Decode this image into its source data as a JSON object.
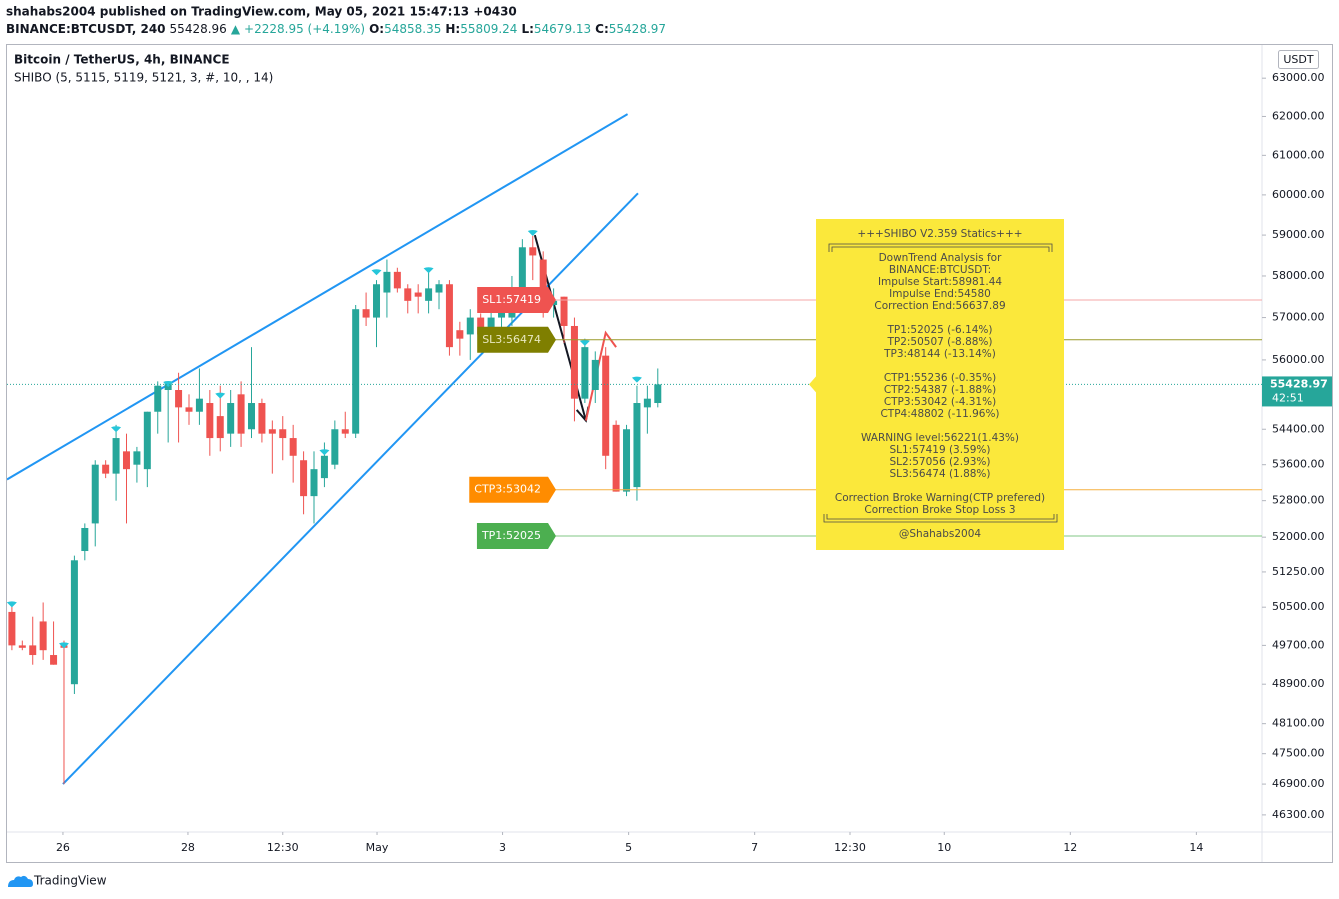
{
  "header": {
    "line1": "shahabs2004 published on TradingView.com, May 05, 2021 15:47:13 +0430",
    "line2": [
      {
        "text": "BINANCE:BTCUSDT, 240",
        "bold": true
      },
      {
        "text": "55428.96"
      },
      {
        "text": "▲",
        "color": "#26a69a"
      },
      {
        "text": "+2228.95 (+4.19%)",
        "color": "#26a69a"
      },
      {
        "text": "O:",
        "bold": true
      },
      {
        "text": "54858.35",
        "color": "#26a69a"
      },
      {
        "text": "H:",
        "bold": true
      },
      {
        "text": "55809.24",
        "color": "#26a69a"
      },
      {
        "text": "L:",
        "bold": true
      },
      {
        "text": "54679.13",
        "color": "#26a69a"
      },
      {
        "text": "C:",
        "bold": true
      },
      {
        "text": "55428.97",
        "color": "#26a69a"
      }
    ]
  },
  "footer": {
    "brand": "TradingView"
  },
  "chart_data": {
    "type": "candlestick",
    "title": "Bitcoin / TetherUS, 4h, BINANCE",
    "subtitle": "SHIBO (5, 5115, 5119, 5121, 3, #, 10, , 14)",
    "currency": "USDT",
    "up_color": "#26a69a",
    "down_color": "#ef5350",
    "log_scale": true,
    "grid": false,
    "open": [
      50400,
      49700,
      49700,
      50200,
      49500,
      49700,
      48900,
      51700,
      52300,
      53600,
      53400,
      53900,
      53600,
      53500,
      54800,
      55300,
      55300,
      54900,
      54800,
      55000,
      54700,
      54300,
      55200,
      54400,
      55000,
      54400,
      54400,
      54200,
      53700,
      52900,
      53300,
      53600,
      54400,
      54300,
      57200,
      57000,
      57600,
      58100,
      57700,
      57600,
      57400,
      57600,
      57800,
      56700,
      56600,
      57000,
      56500,
      57000,
      57000,
      57700,
      58700,
      58400,
      57300,
      57500,
      56800,
      55100,
      55300,
      56100,
      54500,
      53000,
      53100,
      54900,
      55000
    ],
    "high": [
      50600,
      49800,
      50300,
      50600,
      50200,
      49800,
      51600,
      52300,
      53700,
      53700,
      54500,
      54300,
      54000,
      54800,
      55500,
      55500,
      55700,
      55200,
      55800,
      55300,
      55400,
      55300,
      55500,
      56300,
      55100,
      54600,
      54700,
      54500,
      53900,
      53900,
      54100,
      54600,
      54800,
      57300,
      57600,
      57900,
      58400,
      58200,
      57800,
      57800,
      58100,
      57900,
      57900,
      56900,
      57200,
      57100,
      57200,
      57500,
      58000,
      58900,
      58981,
      58600,
      57700,
      57500,
      57000,
      56500,
      56200,
      56300,
      54600,
      54500,
      55400,
      55400,
      55800
    ],
    "low": [
      49600,
      49600,
      49300,
      49400,
      49300,
      46900,
      48700,
      51500,
      51800,
      53300,
      52800,
      52300,
      53200,
      53100,
      54300,
      54100,
      54100,
      54500,
      54500,
      53800,
      53900,
      54000,
      54000,
      54200,
      54100,
      53400,
      53700,
      53200,
      52500,
      52300,
      53100,
      53500,
      54200,
      54200,
      56800,
      56300,
      57000,
      57600,
      57100,
      57100,
      57100,
      57200,
      56100,
      56100,
      56000,
      56400,
      56400,
      56600,
      56800,
      57500,
      57900,
      57000,
      57000,
      56400,
      54580,
      55000,
      55000,
      53500,
      53000,
      52900,
      52800,
      54300,
      54900
    ],
    "close": [
      49700,
      49650,
      49500,
      49600,
      49300,
      49650,
      51500,
      52200,
      53600,
      53400,
      54200,
      53500,
      53900,
      54800,
      55400,
      55500,
      54900,
      54800,
      55100,
      54200,
      54200,
      55000,
      54300,
      55000,
      54300,
      54300,
      54200,
      53800,
      52900,
      53500,
      53800,
      54400,
      54300,
      57200,
      57000,
      57800,
      58100,
      57700,
      57400,
      57500,
      57700,
      57800,
      56300,
      56500,
      57000,
      56600,
      57000,
      57300,
      57700,
      58700,
      58500,
      57200,
      57400,
      56800,
      55100,
      56300,
      56000,
      53800,
      53000,
      54400,
      55000,
      55100,
      55428.97
    ],
    "xlim": [
      -0.47,
      120
    ],
    "xticks": [
      {
        "value": 4.9,
        "label": "26"
      },
      {
        "value": 16.9,
        "label": "28"
      },
      {
        "value": 26.0,
        "label": "12:30"
      },
      {
        "value": 35.05,
        "label": "May"
      },
      {
        "value": 47.1,
        "label": "3"
      },
      {
        "value": 59.2,
        "label": "5"
      },
      {
        "value": 71.3,
        "label": "7"
      },
      {
        "value": 80.45,
        "label": "12:30"
      },
      {
        "value": 89.5,
        "label": "10"
      },
      {
        "value": 101.6,
        "label": "12"
      },
      {
        "value": 113.7,
        "label": "14"
      }
    ],
    "ylim": [
      45970,
      63880
    ],
    "yticks": [
      {
        "value": 46300,
        "label": "46300.00"
      },
      {
        "value": 46900,
        "label": "46900.00"
      },
      {
        "value": 47500,
        "label": "47500.00"
      },
      {
        "value": 48100,
        "label": "48100.00"
      },
      {
        "value": 48900,
        "label": "48900.00"
      },
      {
        "value": 49700,
        "label": "49700.00"
      },
      {
        "value": 50500,
        "label": "50500.00"
      },
      {
        "value": 51250,
        "label": "51250.00"
      },
      {
        "value": 52000,
        "label": "52000.00"
      },
      {
        "value": 52800,
        "label": "52800.00"
      },
      {
        "value": 53600,
        "label": "53600.00"
      },
      {
        "value": 54400,
        "label": "54400.00"
      },
      {
        "value": 56000,
        "label": "56000.00"
      },
      {
        "value": 57000,
        "label": "57000.00"
      },
      {
        "value": 58000,
        "label": "58000.00"
      },
      {
        "value": 59000,
        "label": "59000.00"
      },
      {
        "value": 60000,
        "label": "60000.00"
      },
      {
        "value": 61000,
        "label": "61000.00"
      },
      {
        "value": 62000,
        "label": "62000.00"
      },
      {
        "value": 63000,
        "label": "63000.00"
      }
    ],
    "last_price": {
      "value": 55428.97,
      "label": "55428.97",
      "countdown": "42:51",
      "color": "#26a69a"
    },
    "levels": [
      {
        "value": 57419,
        "label": "SL1:57419",
        "color": "#ef5350",
        "line_color": "#f4a7a7"
      },
      {
        "value": 56474,
        "label": "SL3:56474",
        "color": "#7f7f00",
        "line_color": "#9a9a2a"
      },
      {
        "value": 53042,
        "label": "CTP3:53042",
        "color": "#ff8c00",
        "line_color": "#f5b041"
      },
      {
        "value": 52025,
        "label": "TP1:52025",
        "color": "#4caf50",
        "line_color": "#81c784"
      }
    ],
    "drawings": [
      {
        "color": "#2196f3",
        "x": [
          -0.47,
          59.1
        ],
        "y": [
          53270,
          62060
        ]
      },
      {
        "color": "#2196f3",
        "x": [
          4.9,
          60.1
        ],
        "y": [
          46900,
          60040
        ]
      },
      {
        "color": "#131722",
        "x": [
          50.2,
          55.1
        ],
        "y": [
          59000,
          54600
        ],
        "arrow": true
      },
      {
        "color": "#ef5350",
        "x": [
          55.1,
          57.0,
          58.0
        ],
        "y": [
          54600,
          56637.89,
          56300
        ]
      }
    ],
    "markers": {
      "color": "#26c6da",
      "x": [
        0,
        5,
        10,
        15,
        20,
        30,
        35,
        40,
        50,
        55,
        60
      ],
      "y": [
        50560,
        49700,
        54400,
        55440,
        55170,
        53880,
        58090,
        58140,
        59050,
        56400,
        55540
      ]
    },
    "info_box": {
      "title": "+++SHIBO V2.359 Statics+++",
      "groups": [
        [
          "DownTrend Analysis for",
          "BINANCE:BTCUSDT:",
          "Impulse Start:58981.44",
          "Impulse End:54580",
          "Correction End:56637.89"
        ],
        [
          "TP1:52025 (-6.14%)",
          "TP2:50507 (-8.88%)",
          "TP3:48144 (-13.14%)"
        ],
        [
          "CTP1:55236 (-0.35%)",
          "CTP2:54387 (-1.88%)",
          "CTP3:53042 (-4.31%)",
          "CTP4:48802 (-11.96%)"
        ],
        [
          "WARNING level:56221(1.43%)",
          "SL1:57419 (3.59%)",
          "SL2:57056 (2.93%)",
          "SL3:56474 (1.88%)"
        ],
        [
          "Correction Broke Warning(CTP prefered)",
          "Correction Broke Stop Loss 3"
        ]
      ],
      "signature": "@Shahabs2004",
      "color": "#fbe83b"
    }
  }
}
